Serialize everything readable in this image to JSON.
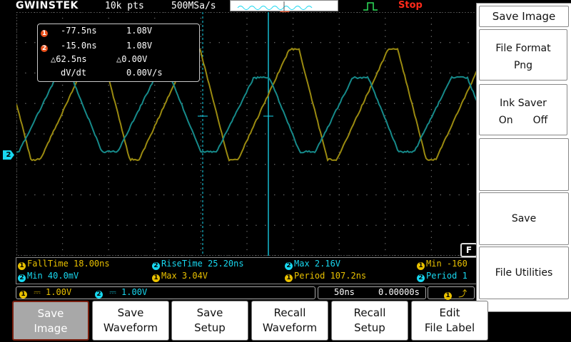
{
  "topbar": {
    "brand": "GWINSTEK",
    "record_length": "10k pts",
    "sample_rate": "500MSa/s",
    "run_state": "Stop"
  },
  "cursors": {
    "c1_marker": "1",
    "c2_marker": "2",
    "c1_time": "-77.5ns",
    "c1_volt": "1.08V",
    "c2_time": "-15.0ns",
    "c2_volt": "1.08V",
    "delta_time": "△62.5ns",
    "delta_volt": "△0.00V",
    "dvdt_label": "dV/dt",
    "dvdt_value": "0.00V/s"
  },
  "measurements": {
    "row1": [
      {
        "ch": "1",
        "text": "FallTime 18.00ns"
      },
      {
        "ch": "2",
        "text": "RiseTime 25.20ns"
      },
      {
        "ch": "2",
        "text": "Max 2.16V"
      },
      {
        "ch": "1",
        "text": "Min -160"
      }
    ],
    "row2": [
      {
        "ch": "2",
        "text": "Min 40.0mV"
      },
      {
        "ch": "1",
        "text": "Max 3.04V"
      },
      {
        "ch": "1",
        "text": "Period 107.2ns"
      },
      {
        "ch": "2",
        "text": "Period 1"
      }
    ]
  },
  "status": {
    "ch1_num": "1",
    "ch1_scale": "1.00V",
    "ch2_num": "2",
    "ch2_scale": "1.00V",
    "timebase": "50ns",
    "position": "0.00000s",
    "trig_ch": "1",
    "ch2_ground_marker": "2",
    "f_badge": "F"
  },
  "side_menu": {
    "title": "Save Image",
    "file_format_label": "File Format",
    "file_format_value": "Png",
    "ink_saver_label": "Ink Saver",
    "ink_saver_on": "On",
    "ink_saver_off": "Off",
    "save_label": "Save",
    "file_utilities_label": "File Utilities"
  },
  "softkeys": [
    {
      "line1": "Save",
      "line2": "Image"
    },
    {
      "line1": "Save",
      "line2": "Waveform"
    },
    {
      "line1": "Save",
      "line2": "Setup"
    },
    {
      "line1": "Recall",
      "line2": "Waveform"
    },
    {
      "line1": "Recall",
      "line2": "Setup"
    },
    {
      "line1": "Edit",
      "line2": "File Label"
    }
  ],
  "colors": {
    "ch1": "#e8c000",
    "ch2": "#18d8f0",
    "ch1_trace": "#9a8a10",
    "ch2_trace": "#168a8a",
    "stop": "#ff2a1a"
  }
}
